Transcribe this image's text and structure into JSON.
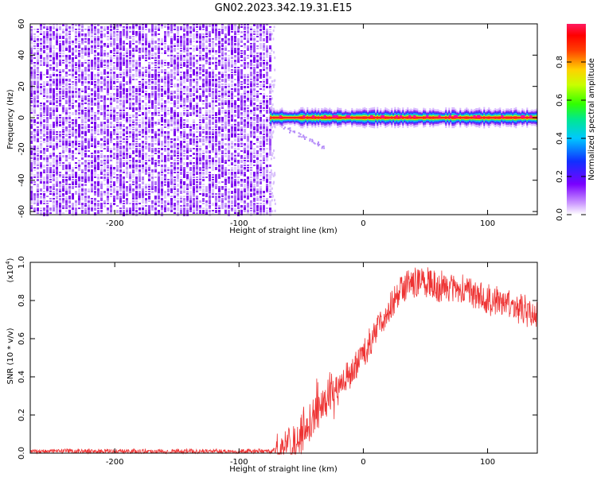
{
  "title": "GN02.2023.342.19.31.E15",
  "colors": {
    "snr_line": "#ee3333",
    "axis": "#000000",
    "background": "#ffffff"
  },
  "chart_data": [
    {
      "type": "heatmap",
      "xlabel": "Height of straight line (km)",
      "ylabel": "Frequency (Hz)",
      "xlim": [
        -268,
        140
      ],
      "ylim": [
        -62,
        60
      ],
      "x_ticks": [
        -200,
        -100,
        0,
        100
      ],
      "y_ticks": [
        60,
        40,
        20,
        0,
        -20,
        -40,
        -60
      ],
      "grid": false,
      "colorbar": {
        "label": "Normalized spectral amplitude",
        "range": [
          0.0,
          1.0
        ],
        "ticks": [
          0.0,
          0.2,
          0.4,
          0.6,
          0.8
        ],
        "colormap": "violet-blue-cyan-green-yellow-red-magenta"
      },
      "regions": [
        {
          "x_range": [
            -268,
            -75
          ],
          "freq_range": [
            -62,
            60
          ],
          "amplitude": "low (~0.05-0.2)",
          "pattern": "broadband noise"
        },
        {
          "x_range": [
            -75,
            140
          ],
          "freq_center": 0,
          "freq_halfwidth": 5,
          "amplitude": "high (~0.6-1.0)",
          "pattern": "narrow band near 0 Hz"
        }
      ]
    },
    {
      "type": "line",
      "xlabel": "Height of straight line (km)",
      "ylabel": "SNR (10 * v/v)",
      "y_multiplier": "(x10",
      "y_multiplier_exp": "4",
      "y_multiplier_close": ")",
      "xlim": [
        -268,
        140
      ],
      "ylim": [
        0,
        1.0
      ],
      "x_ticks": [
        -200,
        -100,
        0,
        100
      ],
      "y_ticks": [
        0.0,
        0.2,
        0.4,
        0.6,
        0.8,
        1.0
      ],
      "grid": false,
      "series": [
        {
          "x": [
            -268,
            -200,
            -100,
            -75,
            -65,
            -50,
            -40,
            -30,
            -20,
            -10,
            0,
            10,
            20,
            30,
            40,
            50,
            60,
            70,
            80,
            90,
            100,
            110,
            120,
            130,
            140
          ],
          "y": [
            0.01,
            0.01,
            0.01,
            0.01,
            0.02,
            0.08,
            0.2,
            0.28,
            0.36,
            0.42,
            0.52,
            0.64,
            0.75,
            0.86,
            0.9,
            0.9,
            0.88,
            0.86,
            0.85,
            0.83,
            0.81,
            0.79,
            0.77,
            0.75,
            0.72
          ]
        }
      ]
    }
  ]
}
